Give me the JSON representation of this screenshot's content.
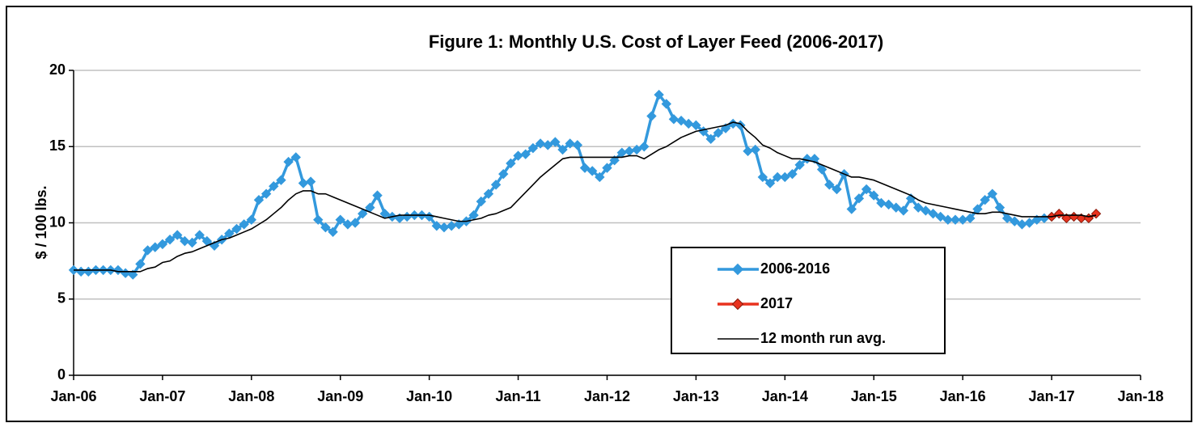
{
  "chart_data": {
    "type": "line",
    "title": "Figure 1: Monthly U.S. Cost of Layer Feed  (2006-2017)",
    "y_label": "$ / 100 lbs.",
    "x": [
      "2006-01",
      "2006-02",
      "2006-03",
      "2006-04",
      "2006-05",
      "2006-06",
      "2006-07",
      "2006-08",
      "2006-09",
      "2006-10",
      "2006-11",
      "2006-12",
      "2007-01",
      "2007-02",
      "2007-03",
      "2007-04",
      "2007-05",
      "2007-06",
      "2007-07",
      "2007-08",
      "2007-09",
      "2007-10",
      "2007-11",
      "2007-12",
      "2008-01",
      "2008-02",
      "2008-03",
      "2008-04",
      "2008-05",
      "2008-06",
      "2008-07",
      "2008-08",
      "2008-09",
      "2008-10",
      "2008-11",
      "2008-12",
      "2009-01",
      "2009-02",
      "2009-03",
      "2009-04",
      "2009-05",
      "2009-06",
      "2009-07",
      "2009-08",
      "2009-09",
      "2009-10",
      "2009-11",
      "2009-12",
      "2010-01",
      "2010-02",
      "2010-03",
      "2010-04",
      "2010-05",
      "2010-06",
      "2010-07",
      "2010-08",
      "2010-09",
      "2010-10",
      "2010-11",
      "2010-12",
      "2011-01",
      "2011-02",
      "2011-03",
      "2011-04",
      "2011-05",
      "2011-06",
      "2011-07",
      "2011-08",
      "2011-09",
      "2011-10",
      "2011-11",
      "2011-12",
      "2012-01",
      "2012-02",
      "2012-03",
      "2012-04",
      "2012-05",
      "2012-06",
      "2012-07",
      "2012-08",
      "2012-09",
      "2012-10",
      "2012-11",
      "2012-12",
      "2013-01",
      "2013-02",
      "2013-03",
      "2013-04",
      "2013-05",
      "2013-06",
      "2013-07",
      "2013-08",
      "2013-09",
      "2013-10",
      "2013-11",
      "2013-12",
      "2014-01",
      "2014-02",
      "2014-03",
      "2014-04",
      "2014-05",
      "2014-06",
      "2014-07",
      "2014-08",
      "2014-09",
      "2014-10",
      "2014-11",
      "2014-12",
      "2015-01",
      "2015-02",
      "2015-03",
      "2015-04",
      "2015-05",
      "2015-06",
      "2015-07",
      "2015-08",
      "2015-09",
      "2015-10",
      "2015-11",
      "2015-12",
      "2016-01",
      "2016-02",
      "2016-03",
      "2016-04",
      "2016-05",
      "2016-06",
      "2016-07",
      "2016-08",
      "2016-09",
      "2016-10",
      "2016-11",
      "2016-12",
      "2017-01",
      "2017-02",
      "2017-03",
      "2017-04",
      "2017-05",
      "2017-06",
      "2017-07"
    ],
    "series": [
      {
        "name": "2006-2016",
        "color": "#3399dd",
        "marker": "diamond",
        "marker_edge": "#3399dd",
        "values": [
          6.9,
          6.8,
          6.8,
          6.9,
          6.9,
          6.9,
          6.9,
          6.7,
          6.6,
          7.3,
          8.2,
          8.4,
          8.6,
          8.9,
          9.2,
          8.8,
          8.7,
          9.2,
          8.8,
          8.5,
          8.9,
          9.3,
          9.6,
          9.9,
          10.2,
          11.5,
          11.9,
          12.4,
          12.8,
          14.0,
          14.3,
          12.6,
          12.7,
          10.2,
          9.7,
          9.4,
          10.2,
          9.9,
          10.0,
          10.6,
          11.0,
          11.8,
          10.6,
          10.4,
          10.3,
          10.4,
          10.5,
          10.5,
          10.4,
          9.8,
          9.7,
          9.8,
          9.9,
          10.1,
          10.5,
          11.4,
          11.9,
          12.5,
          13.2,
          13.9,
          14.4,
          14.5,
          14.9,
          15.2,
          15.1,
          15.3,
          14.8,
          15.2,
          15.1,
          13.6,
          13.4,
          13.0,
          13.6,
          14.1,
          14.6,
          14.7,
          14.8,
          15.0,
          17.0,
          18.4,
          17.8,
          16.8,
          16.7,
          16.5,
          16.4,
          16.0,
          15.5,
          15.9,
          16.2,
          16.5,
          16.4,
          14.7,
          14.8,
          13.0,
          12.6,
          13.0,
          13.0,
          13.2,
          13.8,
          14.2,
          14.2,
          13.5,
          12.5,
          12.2,
          13.2,
          10.9,
          11.6,
          12.2,
          11.8,
          11.3,
          11.2,
          11.0,
          10.8,
          11.6,
          11.0,
          10.8,
          10.6,
          10.4,
          10.2,
          10.2,
          10.2,
          10.3,
          10.9,
          11.5,
          11.9,
          11.0,
          10.3,
          10.1,
          9.9,
          10.0,
          10.2,
          10.3,
          null,
          null,
          null,
          null,
          null,
          null,
          null
        ]
      },
      {
        "name": "2017",
        "color": "#e8321e",
        "marker": "diamond",
        "marker_edge": "#8a1a0a",
        "values": [
          null,
          null,
          null,
          null,
          null,
          null,
          null,
          null,
          null,
          null,
          null,
          null,
          null,
          null,
          null,
          null,
          null,
          null,
          null,
          null,
          null,
          null,
          null,
          null,
          null,
          null,
          null,
          null,
          null,
          null,
          null,
          null,
          null,
          null,
          null,
          null,
          null,
          null,
          null,
          null,
          null,
          null,
          null,
          null,
          null,
          null,
          null,
          null,
          null,
          null,
          null,
          null,
          null,
          null,
          null,
          null,
          null,
          null,
          null,
          null,
          null,
          null,
          null,
          null,
          null,
          null,
          null,
          null,
          null,
          null,
          null,
          null,
          null,
          null,
          null,
          null,
          null,
          null,
          null,
          null,
          null,
          null,
          null,
          null,
          null,
          null,
          null,
          null,
          null,
          null,
          null,
          null,
          null,
          null,
          null,
          null,
          null,
          null,
          null,
          null,
          null,
          null,
          null,
          null,
          null,
          null,
          null,
          null,
          null,
          null,
          null,
          null,
          null,
          null,
          null,
          null,
          null,
          null,
          null,
          null,
          null,
          null,
          null,
          null,
          null,
          null,
          null,
          null,
          null,
          null,
          null,
          null,
          10.4,
          10.6,
          10.3,
          10.4,
          10.3,
          10.3,
          10.6
        ]
      },
      {
        "name": "12 month run avg.",
        "color": "#000000",
        "marker": "none",
        "values": [
          6.9,
          6.9,
          6.9,
          6.9,
          6.9,
          6.9,
          6.8,
          6.8,
          6.8,
          6.8,
          7.0,
          7.1,
          7.4,
          7.5,
          7.8,
          8.0,
          8.1,
          8.3,
          8.5,
          8.7,
          8.9,
          9.0,
          9.2,
          9.4,
          9.6,
          9.9,
          10.2,
          10.6,
          11.0,
          11.5,
          11.9,
          12.1,
          12.1,
          11.9,
          11.9,
          11.7,
          11.5,
          11.3,
          11.1,
          10.9,
          10.7,
          10.5,
          10.3,
          10.4,
          10.5,
          10.5,
          10.5,
          10.5,
          10.5,
          10.4,
          10.3,
          10.2,
          10.1,
          10.1,
          10.2,
          10.3,
          10.5,
          10.6,
          10.8,
          11.0,
          11.5,
          12.0,
          12.5,
          13.0,
          13.4,
          13.8,
          14.2,
          14.3,
          14.3,
          14.3,
          14.3,
          14.3,
          14.3,
          14.3,
          14.3,
          14.4,
          14.4,
          14.2,
          14.5,
          14.8,
          15.0,
          15.3,
          15.6,
          15.8,
          16.0,
          16.1,
          16.2,
          16.3,
          16.4,
          16.6,
          16.5,
          16.0,
          15.6,
          15.1,
          14.9,
          14.6,
          14.4,
          14.2,
          14.2,
          14.1,
          14.0,
          13.8,
          13.6,
          13.4,
          13.2,
          13.0,
          13.0,
          12.9,
          12.8,
          12.6,
          12.4,
          12.2,
          12.0,
          11.8,
          11.5,
          11.3,
          11.2,
          11.1,
          11.0,
          10.9,
          10.8,
          10.7,
          10.6,
          10.6,
          10.7,
          10.7,
          10.6,
          10.5,
          10.4,
          10.4,
          10.4,
          10.4,
          10.4,
          10.5,
          10.5,
          10.5,
          10.5,
          10.4,
          10.5
        ]
      }
    ],
    "xlim": [
      "2006-01",
      "2018-01"
    ],
    "xticks": [
      {
        "value": "2006-01",
        "label": "Jan-06"
      },
      {
        "value": "2007-01",
        "label": "Jan-07"
      },
      {
        "value": "2008-01",
        "label": "Jan-08"
      },
      {
        "value": "2009-01",
        "label": "Jan-09"
      },
      {
        "value": "2010-01",
        "label": "Jan-10"
      },
      {
        "value": "2011-01",
        "label": "Jan-11"
      },
      {
        "value": "2012-01",
        "label": "Jan-12"
      },
      {
        "value": "2013-01",
        "label": "Jan-13"
      },
      {
        "value": "2014-01",
        "label": "Jan-14"
      },
      {
        "value": "2015-01",
        "label": "Jan-15"
      },
      {
        "value": "2016-01",
        "label": "Jan-16"
      },
      {
        "value": "2017-01",
        "label": "Jan-17"
      },
      {
        "value": "2018-01",
        "label": "Jan-18"
      }
    ],
    "ylim": [
      0,
      20
    ],
    "yticks": [
      0,
      5,
      10,
      15,
      20
    ],
    "grid": true,
    "legend": "lower right"
  }
}
